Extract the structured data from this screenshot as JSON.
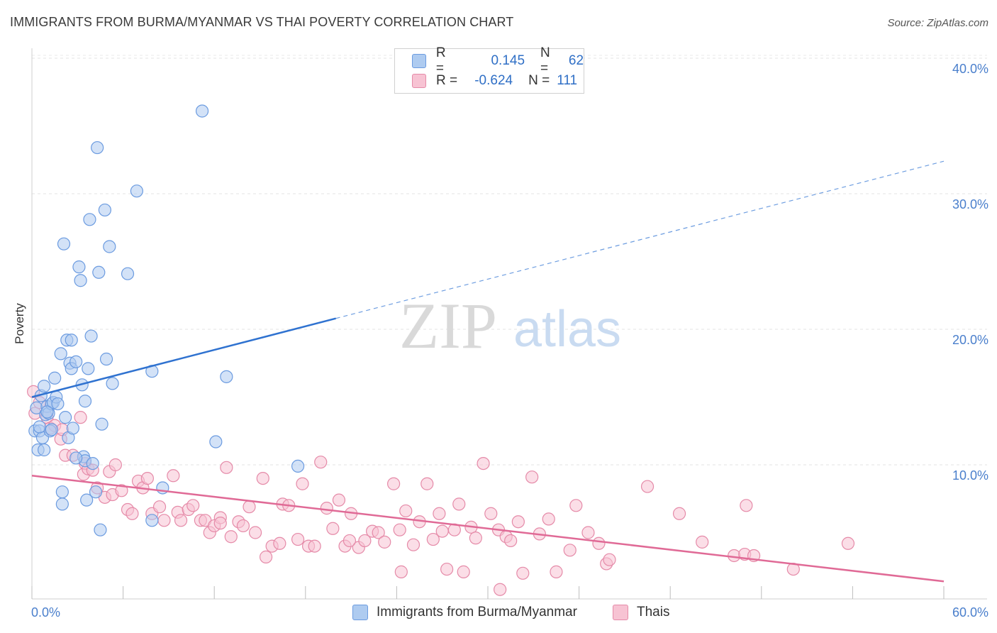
{
  "title": "IMMIGRANTS FROM BURMA/MYANMAR VS THAI POVERTY CORRELATION CHART",
  "source": "Source: ZipAtlas.com",
  "watermark": {
    "zip": "ZIP",
    "atlas": "atlas"
  },
  "legend_top": {
    "rows": [
      {
        "r_label": "R =",
        "r_value": "0.145",
        "n_label": "N =",
        "n_value": "62",
        "color": "#aecbf0",
        "border": "#6b9be0"
      },
      {
        "r_label": "R =",
        "r_value": "-0.624",
        "n_label": "N =",
        "n_value": "111",
        "color": "#f7c3d3",
        "border": "#e58aa8"
      }
    ]
  },
  "legend_bottom": [
    {
      "label": "Immigrants from Burma/Myanmar",
      "color": "#aecbf0",
      "border": "#6b9be0"
    },
    {
      "label": "Thais",
      "color": "#f7c3d3",
      "border": "#e58aa8"
    }
  ],
  "x_tick_labels": {
    "min": "0.0%",
    "max": "60.0%"
  },
  "y_tick_labels": [
    "10.0%",
    "20.0%",
    "30.0%",
    "40.0%"
  ],
  "chart_data": {
    "type": "scatter",
    "title": "IMMIGRANTS FROM BURMA/MYANMAR VS THAI POVERTY CORRELATION CHART",
    "xlabel": "",
    "ylabel": "Poverty",
    "xlim": [
      0,
      60
    ],
    "ylim": [
      0,
      42
    ],
    "grid": true,
    "legend": "bottom-center",
    "series": [
      {
        "name": "Immigrants from Burma/Myanmar",
        "color": "#6b9be0",
        "fill": "#aecbf0",
        "trend": {
          "x0": 0,
          "y0": 15.0,
          "x1": 20,
          "y1": 20.8,
          "dash_x1": 60,
          "dash_y1": 32.4
        },
        "points": [
          [
            0.2,
            12.5
          ],
          [
            0.3,
            14.2
          ],
          [
            0.4,
            11.1
          ],
          [
            0.5,
            12.5
          ],
          [
            0.6,
            15.1
          ],
          [
            0.7,
            12.0
          ],
          [
            0.8,
            15.8
          ],
          [
            0.8,
            11.1
          ],
          [
            0.9,
            13.7
          ],
          [
            1.0,
            14.3
          ],
          [
            1.1,
            13.8
          ],
          [
            1.2,
            12.5
          ],
          [
            1.3,
            14.5
          ],
          [
            1.4,
            14.6
          ],
          [
            1.5,
            16.4
          ],
          [
            1.6,
            15.0
          ],
          [
            1.7,
            14.5
          ],
          [
            1.9,
            18.2
          ],
          [
            2.0,
            8.0
          ],
          [
            2.0,
            7.1
          ],
          [
            2.1,
            26.3
          ],
          [
            2.2,
            13.5
          ],
          [
            2.3,
            19.2
          ],
          [
            2.4,
            12.0
          ],
          [
            2.5,
            17.5
          ],
          [
            2.6,
            17.1
          ],
          [
            2.6,
            19.2
          ],
          [
            2.7,
            12.7
          ],
          [
            2.9,
            17.6
          ],
          [
            3.1,
            24.6
          ],
          [
            3.2,
            23.6
          ],
          [
            3.3,
            15.9
          ],
          [
            3.4,
            10.6
          ],
          [
            3.5,
            10.3
          ],
          [
            3.5,
            14.7
          ],
          [
            3.6,
            7.4
          ],
          [
            3.7,
            17.1
          ],
          [
            3.8,
            28.1
          ],
          [
            3.9,
            19.5
          ],
          [
            4.0,
            10.1
          ],
          [
            4.2,
            8.0
          ],
          [
            4.3,
            33.4
          ],
          [
            4.4,
            24.2
          ],
          [
            4.5,
            5.2
          ],
          [
            4.6,
            13.0
          ],
          [
            4.8,
            28.8
          ],
          [
            4.9,
            17.8
          ],
          [
            5.1,
            26.1
          ],
          [
            5.3,
            16.0
          ],
          [
            6.3,
            24.1
          ],
          [
            6.9,
            30.2
          ],
          [
            7.9,
            16.9
          ],
          [
            7.9,
            5.9
          ],
          [
            8.6,
            8.3
          ],
          [
            11.2,
            36.1
          ],
          [
            12.1,
            11.7
          ],
          [
            12.8,
            16.5
          ],
          [
            17.5,
            9.9
          ],
          [
            0.5,
            12.8
          ],
          [
            1.0,
            13.9
          ],
          [
            2.9,
            10.5
          ],
          [
            1.3,
            12.6
          ]
        ]
      },
      {
        "name": "Thais",
        "color": "#e58aa8",
        "fill": "#f7c3d3",
        "trend": {
          "x0": 0,
          "y0": 9.2,
          "x1": 60,
          "y1": 1.4
        },
        "points": [
          [
            0.1,
            15.4
          ],
          [
            0.2,
            13.8
          ],
          [
            0.5,
            14.6
          ],
          [
            1.0,
            13.5
          ],
          [
            1.2,
            12.7
          ],
          [
            1.5,
            12.9
          ],
          [
            1.9,
            11.9
          ],
          [
            2.0,
            12.6
          ],
          [
            2.2,
            10.7
          ],
          [
            2.7,
            10.7
          ],
          [
            3.2,
            13.5
          ],
          [
            3.4,
            9.3
          ],
          [
            3.5,
            10.1
          ],
          [
            3.7,
            9.7
          ],
          [
            4.0,
            9.6
          ],
          [
            4.3,
            8.3
          ],
          [
            4.8,
            7.6
          ],
          [
            5.1,
            9.5
          ],
          [
            5.3,
            7.8
          ],
          [
            5.5,
            10.0
          ],
          [
            5.9,
            8.1
          ],
          [
            6.3,
            6.7
          ],
          [
            6.6,
            6.4
          ],
          [
            7.0,
            8.8
          ],
          [
            7.3,
            8.3
          ],
          [
            7.6,
            9.0
          ],
          [
            7.9,
            6.4
          ],
          [
            8.4,
            6.9
          ],
          [
            8.7,
            5.9
          ],
          [
            9.3,
            9.2
          ],
          [
            9.6,
            6.5
          ],
          [
            9.8,
            5.9
          ],
          [
            10.3,
            6.7
          ],
          [
            10.6,
            7.0
          ],
          [
            11.1,
            5.9
          ],
          [
            11.4,
            5.9
          ],
          [
            11.7,
            5.0
          ],
          [
            12.0,
            5.5
          ],
          [
            12.4,
            6.1
          ],
          [
            12.8,
            9.8
          ],
          [
            13.1,
            4.7
          ],
          [
            13.6,
            5.8
          ],
          [
            13.9,
            5.5
          ],
          [
            14.3,
            6.9
          ],
          [
            14.7,
            5.0
          ],
          [
            15.2,
            9.0
          ],
          [
            15.4,
            3.2
          ],
          [
            15.8,
            4.0
          ],
          [
            16.3,
            4.2
          ],
          [
            16.5,
            7.1
          ],
          [
            16.9,
            7.0
          ],
          [
            17.5,
            4.5
          ],
          [
            17.8,
            8.6
          ],
          [
            18.2,
            4.0
          ],
          [
            18.6,
            4.0
          ],
          [
            19.0,
            10.2
          ],
          [
            19.4,
            6.8
          ],
          [
            19.8,
            5.3
          ],
          [
            20.2,
            7.4
          ],
          [
            20.6,
            4.0
          ],
          [
            21.0,
            6.4
          ],
          [
            21.5,
            3.9
          ],
          [
            21.9,
            4.4
          ],
          [
            22.4,
            5.1
          ],
          [
            22.8,
            5.0
          ],
          [
            23.2,
            4.3
          ],
          [
            23.8,
            8.6
          ],
          [
            24.2,
            5.2
          ],
          [
            24.6,
            6.6
          ],
          [
            25.1,
            4.1
          ],
          [
            25.5,
            5.8
          ],
          [
            26.0,
            8.6
          ],
          [
            26.4,
            4.5
          ],
          [
            26.8,
            6.4
          ],
          [
            27.3,
            2.3
          ],
          [
            27.8,
            5.2
          ],
          [
            28.1,
            7.1
          ],
          [
            28.4,
            2.1
          ],
          [
            28.9,
            5.4
          ],
          [
            29.2,
            4.6
          ],
          [
            29.7,
            10.1
          ],
          [
            30.2,
            6.4
          ],
          [
            30.7,
            5.2
          ],
          [
            31.2,
            4.7
          ],
          [
            31.5,
            4.4
          ],
          [
            32.0,
            5.8
          ],
          [
            32.3,
            2.0
          ],
          [
            32.9,
            9.1
          ],
          [
            33.4,
            4.9
          ],
          [
            34.0,
            6.0
          ],
          [
            34.5,
            2.1
          ],
          [
            35.4,
            3.7
          ],
          [
            35.8,
            7.0
          ],
          [
            36.6,
            5.0
          ],
          [
            37.3,
            4.2
          ],
          [
            37.8,
            2.7
          ],
          [
            38.0,
            3.0
          ],
          [
            40.5,
            8.4
          ],
          [
            42.6,
            6.4
          ],
          [
            44.1,
            4.3
          ],
          [
            46.2,
            3.3
          ],
          [
            46.9,
            3.4
          ],
          [
            47.5,
            3.3
          ],
          [
            50.1,
            2.3
          ],
          [
            53.7,
            4.2
          ],
          [
            47.0,
            7.0
          ],
          [
            24.3,
            2.1
          ],
          [
            30.8,
            0.8
          ],
          [
            20.9,
            4.4
          ],
          [
            27.0,
            5.1
          ],
          [
            12.4,
            5.7
          ]
        ]
      }
    ]
  }
}
